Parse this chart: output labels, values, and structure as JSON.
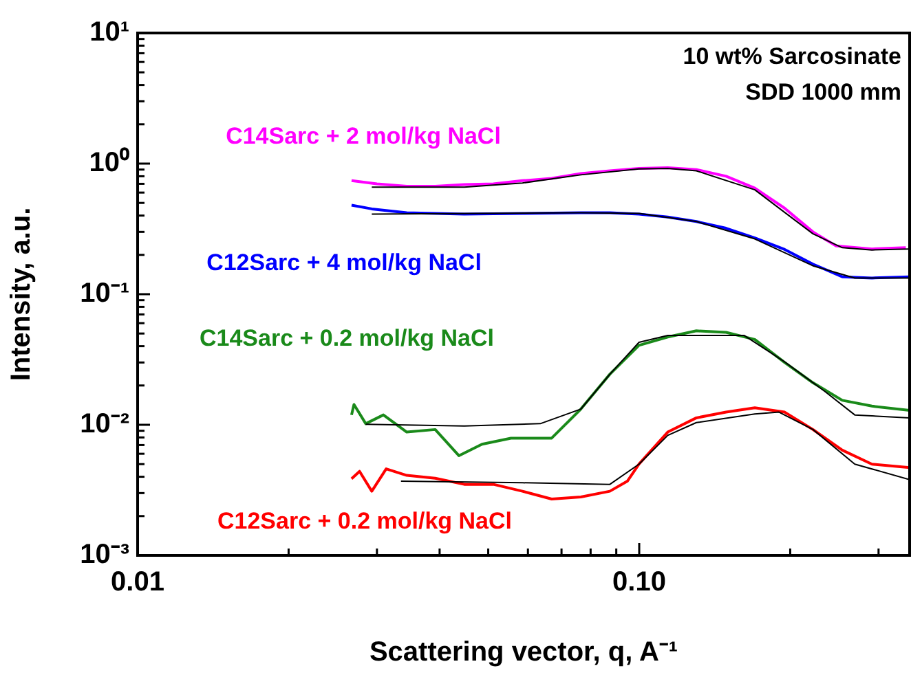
{
  "chart_data": {
    "type": "line",
    "xlabel": "Scattering vector, q, A⁻¹",
    "ylabel": "Intensity, a.u.",
    "log": "xy",
    "marker": "none",
    "legend": false,
    "annotations": [
      "10 wt% Sarcosinate",
      "SDD 1000 mm"
    ],
    "xlim": [
      0.01,
      0.346
    ],
    "ylim": [
      0.001,
      10
    ],
    "xticks": [
      {
        "value": 0.01,
        "label": "0.01"
      },
      {
        "value": 0.02,
        "label": null
      },
      {
        "value": 0.03,
        "label": null
      },
      {
        "value": 0.04,
        "label": null
      },
      {
        "value": 0.05,
        "label": null
      },
      {
        "value": 0.06,
        "label": null
      },
      {
        "value": 0.07,
        "label": null
      },
      {
        "value": 0.08,
        "label": null
      },
      {
        "value": 0.09,
        "label": null
      },
      {
        "value": 0.1,
        "label": "0.10"
      },
      {
        "value": 0.2,
        "label": null
      },
      {
        "value": 0.3,
        "label": null
      }
    ],
    "yticks": [
      {
        "value": 0.001,
        "label": "10⁻³"
      },
      {
        "value": 0.002,
        "label": null
      },
      {
        "value": 0.003,
        "label": null
      },
      {
        "value": 0.004,
        "label": null
      },
      {
        "value": 0.005,
        "label": null
      },
      {
        "value": 0.006,
        "label": null
      },
      {
        "value": 0.007,
        "label": null
      },
      {
        "value": 0.008,
        "label": null
      },
      {
        "value": 0.009,
        "label": null
      },
      {
        "value": 0.01,
        "label": "10⁻²"
      },
      {
        "value": 0.02,
        "label": null
      },
      {
        "value": 0.03,
        "label": null
      },
      {
        "value": 0.04,
        "label": null
      },
      {
        "value": 0.05,
        "label": null
      },
      {
        "value": 0.06,
        "label": null
      },
      {
        "value": 0.07,
        "label": null
      },
      {
        "value": 0.08,
        "label": null
      },
      {
        "value": 0.09,
        "label": null
      },
      {
        "value": 0.1,
        "label": "10⁻¹"
      },
      {
        "value": 0.2,
        "label": null
      },
      {
        "value": 0.3,
        "label": null
      },
      {
        "value": 0.4,
        "label": null
      },
      {
        "value": 0.5,
        "label": null
      },
      {
        "value": 0.6,
        "label": null
      },
      {
        "value": 0.7,
        "label": null
      },
      {
        "value": 0.8,
        "label": null
      },
      {
        "value": 0.9,
        "label": null
      },
      {
        "value": 1,
        "label": "10⁰"
      },
      {
        "value": 2,
        "label": null
      },
      {
        "value": 3,
        "label": null
      },
      {
        "value": 4,
        "label": null
      },
      {
        "value": 5,
        "label": null
      },
      {
        "value": 6,
        "label": null
      },
      {
        "value": 7,
        "label": null
      },
      {
        "value": 8,
        "label": null
      },
      {
        "value": 9,
        "label": null
      },
      {
        "value": 10,
        "label": "10¹"
      }
    ],
    "series": [
      {
        "name": "C14Sarc + 2 mol/kg NaCl",
        "color": "#ff00ff",
        "x": [
          0.0267,
          0.03,
          0.0344,
          0.0392,
          0.0448,
          0.0512,
          0.0585,
          0.0669,
          0.0765,
          0.0874,
          0.0999,
          0.114,
          0.13,
          0.149,
          0.17,
          0.195,
          0.222,
          0.247,
          0.291,
          0.34
        ],
        "values": [
          0.74,
          0.7,
          0.67,
          0.67,
          0.69,
          0.7,
          0.74,
          0.77,
          0.84,
          0.88,
          0.92,
          0.93,
          0.9,
          0.8,
          0.65,
          0.455,
          0.3,
          0.234,
          0.222,
          0.227
        ]
      },
      {
        "name": "C12Sarc + 4 mol/kg NaCl",
        "color": "#0000ff",
        "x": [
          0.0267,
          0.0293,
          0.0344,
          0.0448,
          0.0585,
          0.0765,
          0.0874,
          0.0999,
          0.114,
          0.13,
          0.149,
          0.17,
          0.195,
          0.222,
          0.254,
          0.291,
          0.346
        ],
        "values": [
          0.48,
          0.45,
          0.42,
          0.41,
          0.415,
          0.42,
          0.42,
          0.41,
          0.39,
          0.36,
          0.32,
          0.27,
          0.22,
          0.17,
          0.136,
          0.133,
          0.136
        ]
      },
      {
        "name": "C14Sarc + 0.2 mol/kg NaCl",
        "color": "#1a8a1a",
        "x": [
          0.0267,
          0.027,
          0.0285,
          0.0309,
          0.0344,
          0.0392,
          0.0437,
          0.0486,
          0.0555,
          0.0669,
          0.0765,
          0.0874,
          0.0999,
          0.114,
          0.13,
          0.149,
          0.17,
          0.195,
          0.222,
          0.254,
          0.291,
          0.346
        ],
        "values": [
          0.0119,
          0.0143,
          0.0102,
          0.0119,
          0.0088,
          0.0092,
          0.0058,
          0.0071,
          0.0079,
          0.0079,
          0.0132,
          0.0244,
          0.0406,
          0.047,
          0.0524,
          0.051,
          0.045,
          0.03,
          0.021,
          0.0154,
          0.0139,
          0.0129
        ]
      },
      {
        "name": "C12Sarc + 0.2 mol/kg NaCl",
        "color": "#ff0000",
        "x": [
          0.0267,
          0.0277,
          0.0293,
          0.0313,
          0.0344,
          0.0392,
          0.0448,
          0.0512,
          0.0585,
          0.0669,
          0.0765,
          0.0874,
          0.0947,
          0.0999,
          0.114,
          0.13,
          0.149,
          0.17,
          0.195,
          0.222,
          0.254,
          0.291,
          0.346
        ],
        "values": [
          0.00386,
          0.0044,
          0.0031,
          0.0046,
          0.0041,
          0.0039,
          0.0035,
          0.0035,
          0.0031,
          0.0027,
          0.0028,
          0.0031,
          0.0037,
          0.005,
          0.0088,
          0.0113,
          0.0125,
          0.0135,
          0.0125,
          0.0092,
          0.0064,
          0.005,
          0.0047
        ]
      },
      {
        "color": "#000000",
        "x": [
          0.0293,
          0.0448,
          0.0585,
          0.0765,
          0.0999,
          0.114,
          0.13,
          0.17,
          0.222,
          0.254,
          0.291,
          0.346
        ],
        "values": [
          0.66,
          0.66,
          0.71,
          0.82,
          0.91,
          0.92,
          0.88,
          0.63,
          0.29,
          0.227,
          0.218,
          0.222
        ]
      },
      {
        "color": "#000000",
        "x": [
          0.0293,
          0.0765,
          0.0999,
          0.13,
          0.17,
          0.222,
          0.269,
          0.346
        ],
        "values": [
          0.41,
          0.42,
          0.415,
          0.36,
          0.265,
          0.165,
          0.133,
          0.133
        ]
      },
      {
        "color": "#000000",
        "x": [
          0.0285,
          0.0448,
          0.0635,
          0.0765,
          0.0874,
          0.0999,
          0.114,
          0.162,
          0.195,
          0.235,
          0.269,
          0.346
        ],
        "values": [
          0.0101,
          0.0098,
          0.0102,
          0.0132,
          0.0244,
          0.0428,
          0.0483,
          0.0483,
          0.0303,
          0.0179,
          0.0119,
          0.0113
        ]
      },
      {
        "color": "#000000",
        "x": [
          0.0335,
          0.0585,
          0.0874,
          0.0999,
          0.114,
          0.13,
          0.17,
          0.19,
          0.222,
          0.269,
          0.346
        ],
        "values": [
          0.0037,
          0.0036,
          0.0035,
          0.005,
          0.0083,
          0.0104,
          0.0121,
          0.0125,
          0.0092,
          0.005,
          0.0038
        ]
      }
    ]
  }
}
